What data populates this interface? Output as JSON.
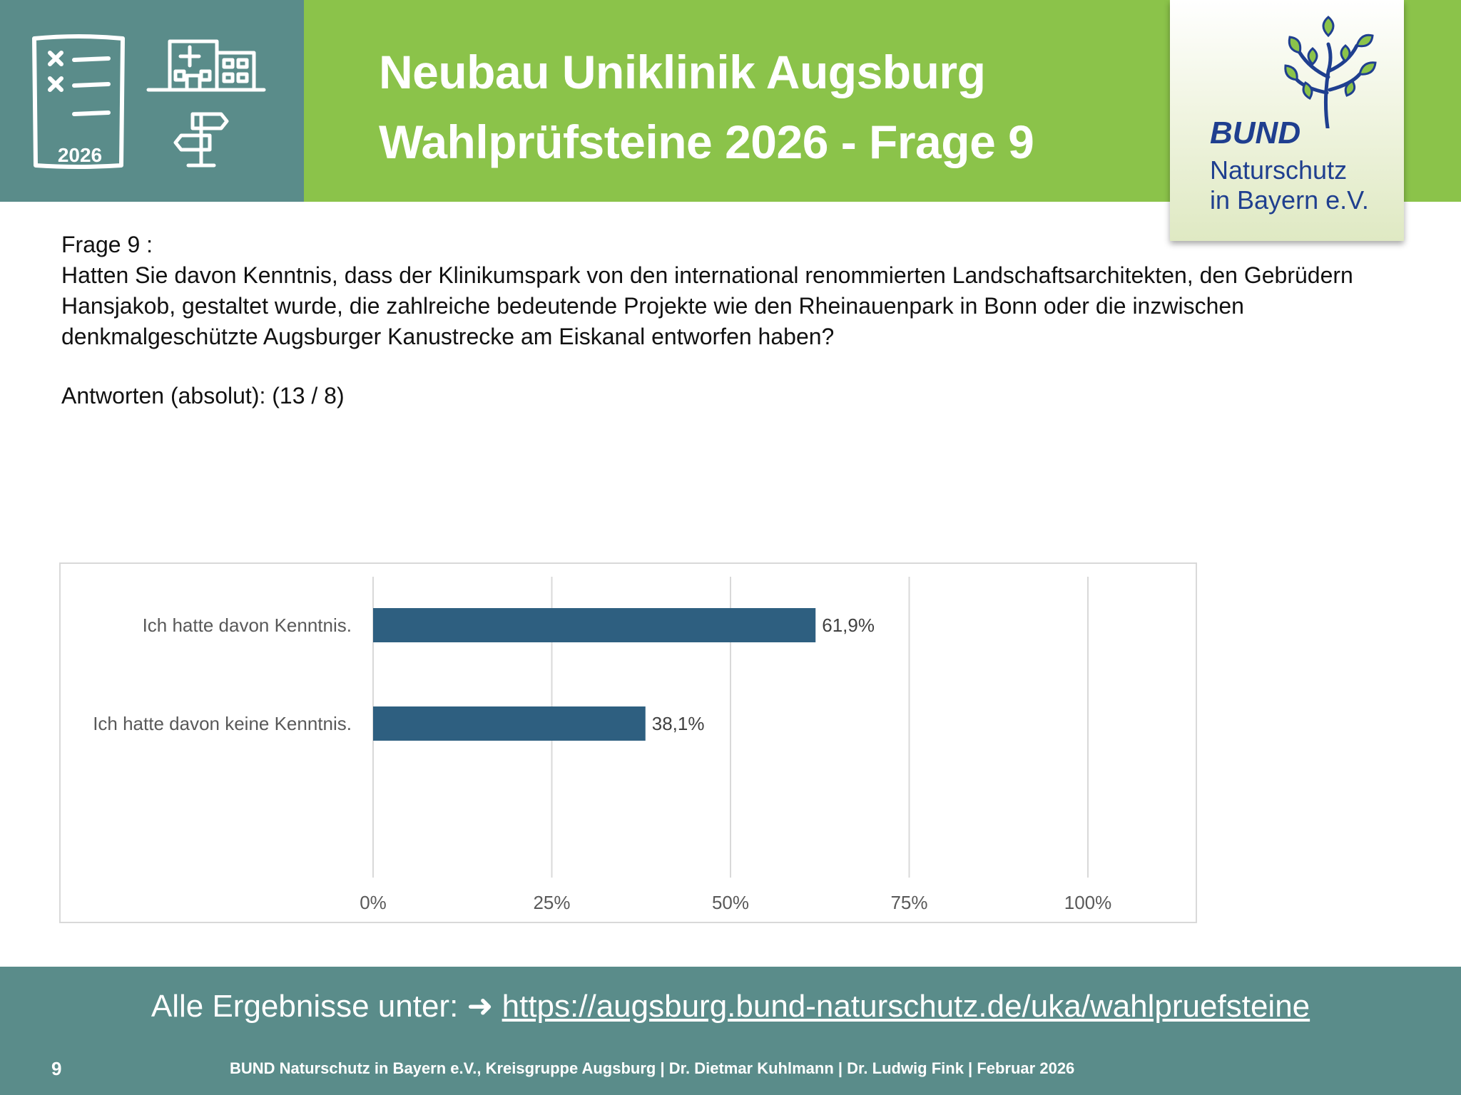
{
  "header": {
    "title_line1": "Neubau Uniklinik Augsburg",
    "title_line2": "Wahlprüfsteine 2026 - Frage 9",
    "icon_year": "2026",
    "icons": [
      "checklist-icon",
      "hospital-icon",
      "signpost-icon"
    ],
    "colors": {
      "green": "#8bc34a",
      "teal": "#5a8c8a"
    }
  },
  "logo": {
    "bund": "BUND",
    "line1": "Naturschutz",
    "line2": "in Bayern e.V.",
    "icon": "tree-logo-icon",
    "color": "#1f3f8f"
  },
  "question": {
    "label": "Frage 9 :",
    "text": "Hatten Sie davon Kenntnis, dass der Klinikumspark von den international renommierten Landschaftsarchitekten, den Gebrüdern Hansjakob, gestaltet wurde, die zahlreiche bedeutende Projekte wie den Rheinauenpark in Bonn oder die inzwischen denkmalgeschützte Augsburger Kanustrecke am Eiskanal entworfen haben?",
    "answers": "Antworten (absolut): (13 / 8)"
  },
  "chart_data": {
    "type": "bar",
    "orientation": "horizontal",
    "categories": [
      "Ich hatte davon Kenntnis.",
      "Ich hatte davon keine Kenntnis."
    ],
    "values": [
      61.9,
      38.1
    ],
    "data_labels": [
      "61,9%",
      "38,1%"
    ],
    "xlim": [
      0,
      100
    ],
    "x_ticks": [
      "0%",
      "25%",
      "50%",
      "75%",
      "100%"
    ],
    "grid": true,
    "bar_color": "#2e5f80"
  },
  "footer": {
    "results_prefix": "Alle Ergebnisse unter: ➜ ",
    "results_link": "https://augsburg.bund-naturschutz.de/uka/wahlpruefsteine",
    "page_number": "9",
    "credits": "BUND Naturschutz in Bayern e.V., Kreisgruppe Augsburg | Dr. Dietmar Kuhlmann | Dr. Ludwig Fink | Februar 2026"
  }
}
